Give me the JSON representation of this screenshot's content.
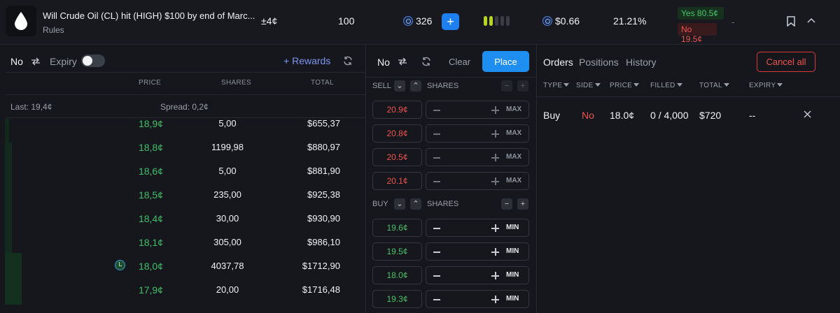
{
  "header": {
    "title": "Will Crude Oil (CL) hit (HIGH) $100 by end of Marc...",
    "rules_label": "Rules",
    "change": "±4¢",
    "volume": "100",
    "balance": "326",
    "price": "$0.66",
    "percent": "21.21%",
    "yes_price": "Yes 80.5¢",
    "no_price": "No 19.5¢",
    "dash": "-",
    "signal_bars_active": 2,
    "signal_bars_total": 5
  },
  "orderbook": {
    "side_label": "No",
    "expiry_label": "Expiry",
    "expiry_enabled": false,
    "rewards_label": "Rewards",
    "columns": {
      "price": "PRICE",
      "shares": "SHARES",
      "total": "TOTAL"
    },
    "last": "Last: 19,4¢",
    "spread": "Spread: 0,2¢",
    "rows": [
      {
        "price": "18,9¢",
        "shares": "5,00",
        "total": "$655,37"
      },
      {
        "price": "18,8¢",
        "shares": "1199,98",
        "total": "$880,97"
      },
      {
        "price": "18,6¢",
        "shares": "5,00",
        "total": "$881,90"
      },
      {
        "price": "18,5¢",
        "shares": "235,00",
        "total": "$925,38"
      },
      {
        "price": "18,4¢",
        "shares": "30,00",
        "total": "$930,90"
      },
      {
        "price": "18,1¢",
        "shares": "305,00",
        "total": "$986,10"
      },
      {
        "price": "18,0¢",
        "shares": "4037,78",
        "total": "$1712,90",
        "own_order": true
      },
      {
        "price": "17,9¢",
        "shares": "20,00",
        "total": "$1716,48"
      }
    ]
  },
  "ticket": {
    "side_label": "No",
    "clear_label": "Clear",
    "place_label": "Place",
    "sell_label": "SELL",
    "buy_label": "BUY",
    "shares_label": "SHARES",
    "sell_rows": [
      {
        "price": "20.9¢",
        "tag": "MAX"
      },
      {
        "price": "20.8¢",
        "tag": "MAX"
      },
      {
        "price": "20.5¢",
        "tag": "MAX"
      },
      {
        "price": "20.1¢",
        "tag": "MAX"
      }
    ],
    "buy_rows": [
      {
        "price": "19.6¢",
        "tag": "MIN"
      },
      {
        "price": "19.5¢",
        "tag": "MIN"
      },
      {
        "price": "18.0¢",
        "tag": "MIN"
      },
      {
        "price": "19.3¢",
        "tag": "MIN"
      }
    ]
  },
  "orders": {
    "tabs": [
      "Orders",
      "Positions",
      "History"
    ],
    "active_tab": "Orders",
    "cancel_all_label": "Cancel all",
    "columns": [
      "TYPE",
      "SIDE",
      "PRICE",
      "FILLED",
      "TOTAL",
      "EXPIRY"
    ],
    "rows": [
      {
        "type": "Buy",
        "side": "No",
        "price": "18.0¢",
        "filled": "0 / 4,000",
        "total": "$720",
        "expiry": "--"
      }
    ]
  },
  "colors": {
    "accent_blue": "#1e8ff0",
    "green": "#3fbf6b",
    "red": "#ef5350",
    "background": "#15171c"
  }
}
